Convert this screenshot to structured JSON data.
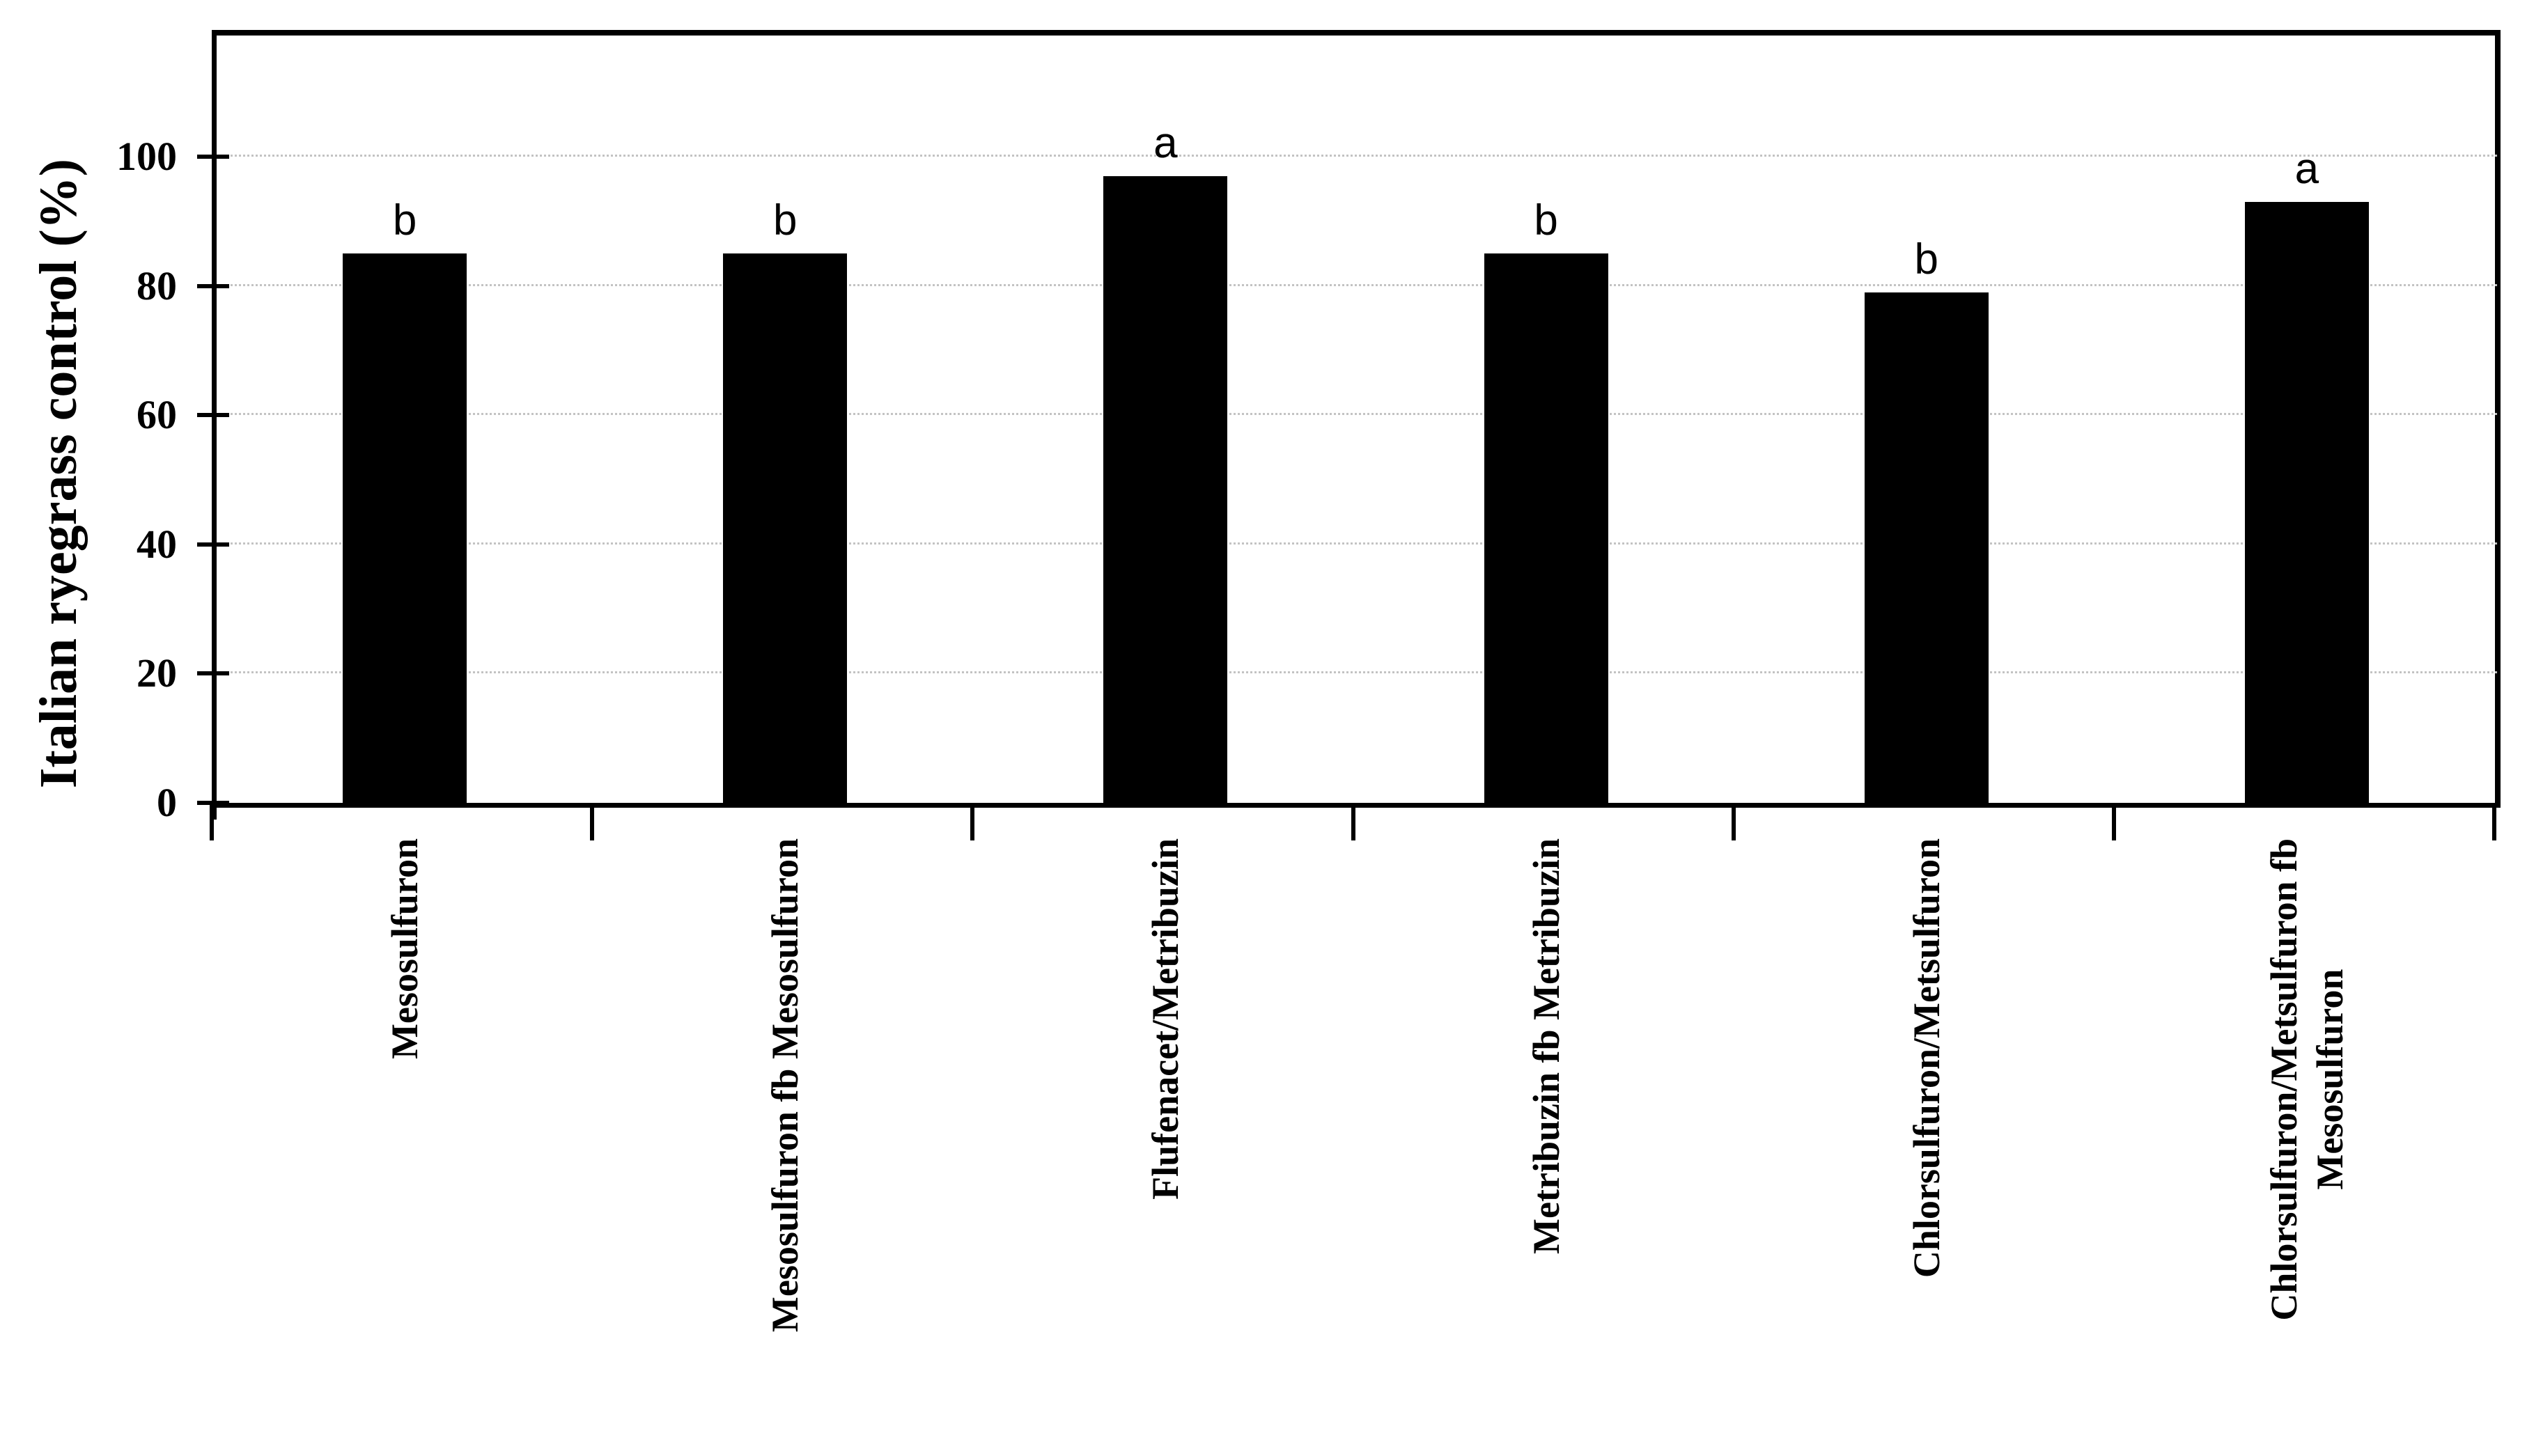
{
  "chart_data": {
    "type": "bar",
    "title": "",
    "xlabel": "",
    "ylabel": "Italian ryegrass control (%)",
    "categories": [
      "Mesosulfuron",
      "Mesosulfuron fb Mesosulfuron",
      "Flufenacet/Metribuzin",
      "Metribuzin fb Metribuzin",
      "Chlorsulfuron/Metsulfuron",
      "Chlorsulfuron/Metsulfuron fb\nMesosulfuron"
    ],
    "values": [
      85,
      85,
      97,
      85,
      79,
      93
    ],
    "bar_labels": [
      "b",
      "b",
      "a",
      "b",
      "b",
      "a"
    ],
    "yticks": [
      0,
      20,
      40,
      60,
      80,
      100
    ],
    "ylim": [
      0,
      119
    ],
    "grid": {
      "axis": "y",
      "style": "dotted",
      "color": "#c3c3c3"
    },
    "bar_color": "#000000",
    "text_color": "#000000",
    "legend_position": "none"
  }
}
